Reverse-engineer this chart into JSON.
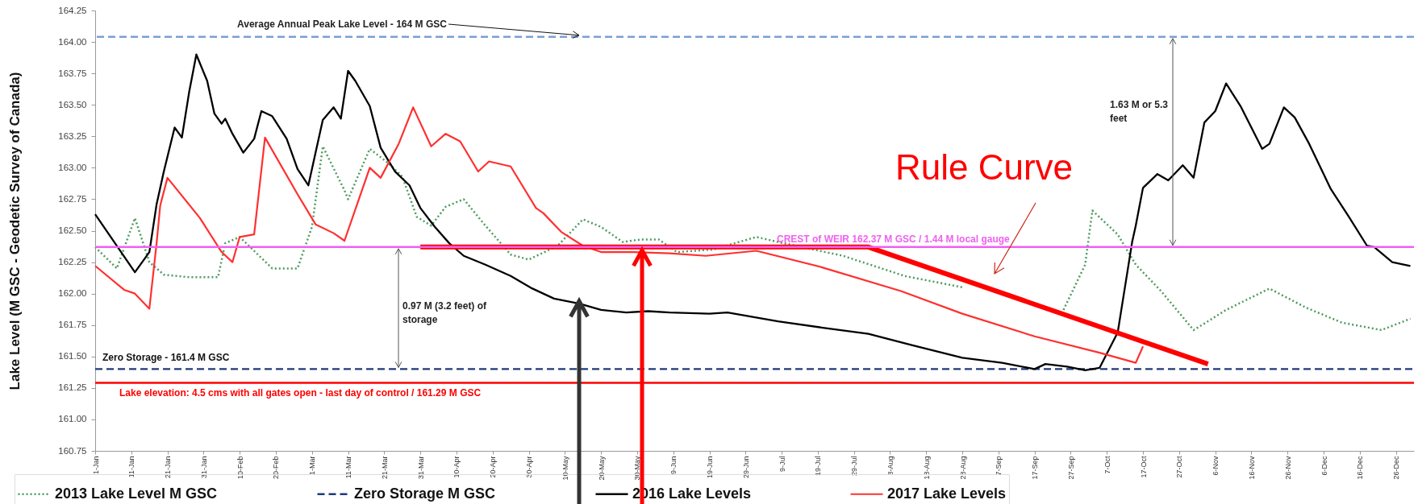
{
  "chart_data": {
    "type": "line",
    "ylabel": "Lake Level (M GSC - Geodetic Survey of Canada)",
    "xlim": [
      "--01-01",
      "--12-31"
    ],
    "ylim": [
      160.75,
      164.25
    ],
    "yticks": [
      {
        "value": 160.75,
        "label": "160.75"
      },
      {
        "value": 161,
        "label": "161.00"
      },
      161.25,
      {
        "value": 161.5,
        "label": "161.50"
      },
      161.75,
      {
        "value": 162,
        "label": "162.00"
      },
      162.25,
      {
        "value": 162.5,
        "label": "162.50"
      },
      162.75,
      {
        "value": 163,
        "label": "163.00"
      },
      163.25,
      {
        "value": 163.5,
        "label": "163.50"
      },
      163.75,
      {
        "value": 164,
        "label": "164.00"
      },
      164.25
    ],
    "xticks": [
      {
        "value": "--01-01",
        "label": "1-Jan"
      },
      {
        "value": "--01-11",
        "label": "11-Jan"
      },
      {
        "value": "--01-21",
        "label": "21-Jan"
      },
      {
        "value": "--01-31",
        "label": "31-Jan"
      },
      {
        "value": "--02-10",
        "label": "10-Feb"
      },
      {
        "value": "--02-20",
        "label": "20-Feb"
      },
      {
        "value": "--03-01",
        "label": "1-Mar"
      },
      {
        "value": "--03-11",
        "label": "11-Mar"
      },
      {
        "value": "--03-21",
        "label": "21-Mar"
      },
      {
        "value": "--03-31",
        "label": "31-Mar"
      },
      {
        "value": "--04-10",
        "label": "10-Apr"
      },
      {
        "value": "--04-20",
        "label": "20-Apr"
      },
      {
        "value": "--04-30",
        "label": "30-Apr"
      },
      {
        "value": "--05-10",
        "label": "10-May"
      },
      {
        "value": "--05-20",
        "label": "20-May"
      },
      {
        "value": "--05-30",
        "label": "30-May"
      },
      {
        "value": "--06-09",
        "label": "9-Jun"
      },
      {
        "value": "--06-19",
        "label": "19-Jun"
      },
      {
        "value": "--06-29",
        "label": "29-Jun"
      },
      {
        "value": "--07-09",
        "label": "9-Jul"
      },
      {
        "value": "--07-19",
        "label": "19-Jul"
      },
      {
        "value": "--07-29",
        "label": "29-Jul"
      },
      {
        "value": "--08-08",
        "label": "8-Aug"
      },
      {
        "value": "--08-18",
        "label": "18-Aug"
      },
      {
        "value": "--08-28",
        "label": "28-Aug"
      },
      {
        "value": "--09-07",
        "label": "7-Sep"
      },
      {
        "value": "--09-17",
        "label": "17-Sep"
      },
      {
        "value": "--09-27",
        "label": "27-Sep"
      },
      {
        "value": "--10-07",
        "label": "7-Oct"
      },
      {
        "value": "--10-17",
        "label": "17-Oct"
      },
      {
        "value": "--10-27",
        "label": "27-Oct"
      },
      {
        "value": "--11-06",
        "label": "6-Nov"
      },
      {
        "value": "--11-16",
        "label": "16-Nov"
      },
      {
        "value": "--11-26",
        "label": "26-Nov"
      },
      {
        "value": "--12-06",
        "label": "6-Dec"
      },
      {
        "value": "--12-16",
        "label": "16-Dec"
      },
      {
        "value": "--12-26",
        "label": "26-Dec"
      }
    ],
    "legend": "bottom",
    "series": [
      {
        "name": "2013 Lake Level M GSC",
        "color": "#4e9a5e",
        "line_style": "dotted",
        "x": [
          "--01-01",
          "--01-07",
          "--01-12",
          "--01-16",
          "--01-20",
          "--01-27",
          "--02-04",
          "--02-06",
          "--02-10",
          "--02-19",
          "--02-26",
          "--03-01",
          "--03-04",
          "--03-10",
          "--03-11",
          "--03-17",
          "--03-22",
          "--03-26",
          "--03-30",
          "--04-03",
          "--04-07",
          "--04-12",
          "--04-18",
          "--04-25",
          "--04-30",
          "--05-08",
          "--05-15",
          "--05-20",
          "--05-26",
          "--05-31",
          "--06-05",
          "--06-10",
          "--06-20",
          "--07-02",
          "--07-08",
          "--07-26",
          "--08-12",
          "--08-28",
          "--09-15",
          "--09-25",
          "--10-01",
          "--10-03",
          "--10-10",
          "--10-15",
          "--10-22",
          "--10-31",
          "--11-04",
          "--11-09",
          "--11-21",
          "--12-01",
          "--12-11",
          "--12-22",
          "--12-30"
        ],
        "values": [
          162.37,
          162.2,
          162.6,
          162.25,
          162.15,
          162.13,
          162.13,
          162.4,
          162.45,
          162.2,
          162.2,
          162.53,
          163.17,
          162.82,
          162.75,
          163.15,
          163.04,
          162.93,
          162.61,
          162.54,
          162.69,
          162.75,
          162.54,
          162.31,
          162.27,
          162.38,
          162.59,
          162.53,
          162.41,
          162.43,
          162.43,
          162.33,
          162.35,
          162.45,
          162.41,
          162.3,
          162.14,
          162.05,
          null,
          161.87,
          162.23,
          162.66,
          162.47,
          162.23,
          162.02,
          161.71,
          161.78,
          161.87,
          162.04,
          161.89,
          161.77,
          161.71,
          161.8
        ]
      },
      {
        "name": "Zero Storage M GSC",
        "color": "#1f3a78",
        "line_style": "dashed",
        "x": [
          "--01-01",
          "--12-31"
        ],
        "values": [
          161.4,
          161.4
        ]
      },
      {
        "name": "2016 Lake Levels",
        "color": "#000000",
        "x": [
          "--01-01",
          "--01-12",
          "--01-16",
          "--01-18",
          "--01-20",
          "--01-23",
          "--01-25",
          "--01-27",
          "--01-29",
          "--02-01",
          "--02-03",
          "--02-05",
          "--02-06",
          "--02-08",
          "--02-11",
          "--02-14",
          "--02-16",
          "--02-19",
          "--02-23",
          "--02-26",
          "--02-29",
          "--03-02",
          "--03-04",
          "--03-07",
          "--03-09",
          "--03-11",
          "--03-13",
          "--03-17",
          "--03-20",
          "--03-24",
          "--03-28",
          "--03-31",
          "--04-04",
          "--04-08",
          "--04-12",
          "--04-18",
          "--04-25",
          "--05-01",
          "--05-07",
          "--05-14",
          "--05-20",
          "--05-27",
          "--06-02",
          "--06-08",
          "--06-19",
          "--06-24",
          "--07-08",
          "--07-20",
          "--08-02",
          "--08-14",
          "--08-28",
          "--09-08",
          "--09-17",
          "--09-20",
          "--09-26",
          "--10-01",
          "--10-05",
          "--10-10",
          "--10-14",
          "--10-15",
          "--10-17",
          "--10-21",
          "--10-24",
          "--10-28",
          "--10-31",
          "--11-03",
          "--11-06",
          "--11-09",
          "--11-13",
          "--11-19",
          "--11-21",
          "--11-25",
          "--11-28",
          "--12-02",
          "--12-08",
          "--12-13",
          "--12-18",
          "--12-20",
          "--12-25",
          "--12-30"
        ],
        "values": [
          162.63,
          162.17,
          162.33,
          162.71,
          162.97,
          163.32,
          163.24,
          163.6,
          163.9,
          163.69,
          163.43,
          163.35,
          163.39,
          163.27,
          163.12,
          163.23,
          163.45,
          163.41,
          163.23,
          162.99,
          162.86,
          163.12,
          163.38,
          163.48,
          163.39,
          163.77,
          163.69,
          163.49,
          163.16,
          162.97,
          162.86,
          162.68,
          162.53,
          162.4,
          162.3,
          162.23,
          162.14,
          162.04,
          161.96,
          161.92,
          161.87,
          161.85,
          161.86,
          161.85,
          161.84,
          161.85,
          161.78,
          161.73,
          161.68,
          161.59,
          161.49,
          161.45,
          161.4,
          161.44,
          161.42,
          161.39,
          161.41,
          161.69,
          162.41,
          162.54,
          162.84,
          162.95,
          162.9,
          163.02,
          162.92,
          163.36,
          163.45,
          163.67,
          163.49,
          163.15,
          163.19,
          163.48,
          163.4,
          163.19,
          162.83,
          162.61,
          162.38,
          162.37,
          162.25,
          162.22
        ]
      },
      {
        "name": "2017 Lake Levels",
        "color": "#ff3030",
        "x": [
          "--01-01",
          "--01-09",
          "--01-12",
          "--01-16",
          "--01-18",
          "--01-19",
          "--01-21",
          "--01-30",
          "--02-05",
          "--02-08",
          "--02-10",
          "--02-14",
          "--02-17",
          "--02-26",
          "--03-02",
          "--03-07",
          "--03-10",
          "--03-17",
          "--03-20",
          "--03-25",
          "--03-29",
          "--04-03",
          "--04-07",
          "--04-11",
          "--04-16",
          "--04-19",
          "--04-25",
          "--05-02",
          "--05-04",
          "--05-09",
          "--05-15",
          "--05-20",
          "--05-29",
          "--06-08",
          "--06-18",
          "--07-02",
          "--07-20",
          "--08-11",
          "--08-28",
          "--09-17",
          "--10-05",
          "--10-15",
          "--10-17"
        ],
        "values": [
          162.22,
          162.03,
          162.0,
          161.88,
          162.4,
          162.7,
          162.92,
          162.6,
          162.33,
          162.25,
          162.45,
          162.47,
          163.24,
          162.79,
          162.55,
          162.48,
          162.42,
          163.0,
          162.92,
          163.19,
          163.48,
          163.17,
          163.27,
          163.21,
          162.97,
          163.05,
          163.01,
          162.68,
          162.64,
          162.49,
          162.38,
          162.33,
          162.33,
          162.32,
          162.3,
          162.34,
          162.21,
          162.02,
          161.84,
          161.66,
          161.53,
          161.45,
          161.58
        ]
      },
      {
        "color": "#ff0000",
        "x": [
          "--03-31",
          "--08-02",
          "--11-04"
        ],
        "values": [
          162.37,
          162.37,
          161.44
        ]
      }
    ],
    "ref_lines": [
      {
        "axis": "y",
        "value": 164.04,
        "label": "Average Annual Peak Lake Level - 164 M GSC",
        "color": "#7ba0d4",
        "line_style": "dashed"
      },
      {
        "axis": "y",
        "value": 162.37,
        "label": "CREST of WEIR 162.37 M GSC / 1.44 M local gauge",
        "color": "#f060f0",
        "line_style": "solid"
      },
      {
        "axis": "y",
        "value": 161.29,
        "label": "Lake elevation:  4.5 cms with all gates open - last day of control / 161.29 M GSC",
        "color": "#ff0000",
        "line_style": "solid"
      }
    ],
    "annotations": [
      "Rule Curve",
      {
        "text": "Zero Storage - 161.4 M GSC",
        "x": "--01-03",
        "y": 161.4
      },
      "0.97 M (3.2 feet) of storage",
      "1.63 M or 5.3 feet"
    ]
  }
}
